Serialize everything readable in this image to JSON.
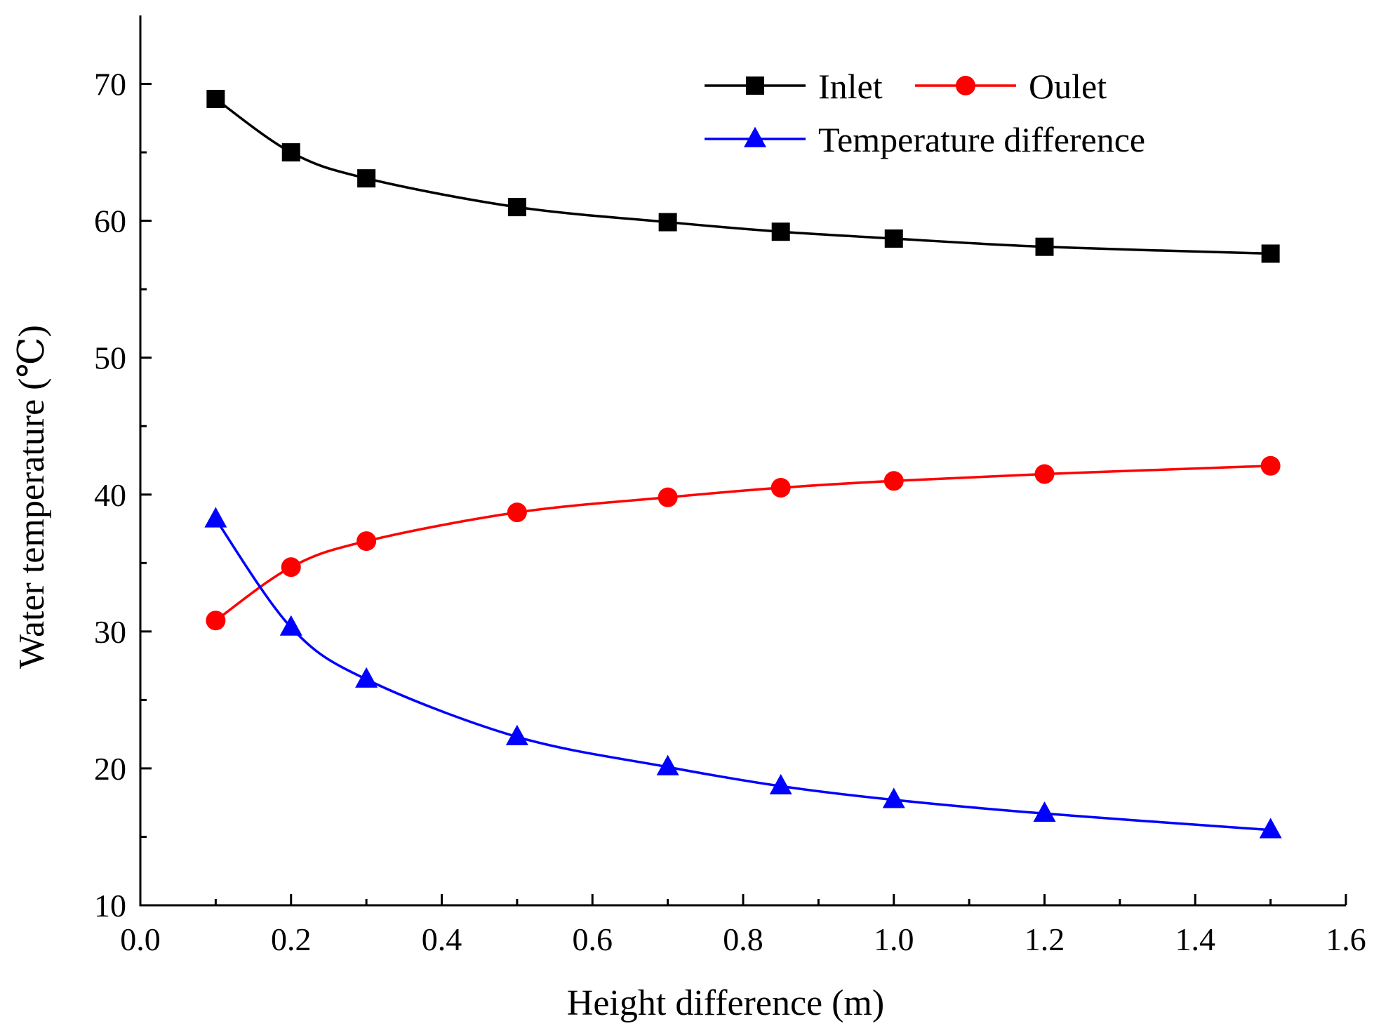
{
  "chart_data": {
    "type": "line",
    "xlabel": "Height difference (m)",
    "ylabel": "Water temperature (℃)",
    "xlim": [
      0.0,
      1.6
    ],
    "ylim": [
      10,
      75
    ],
    "x_ticks": [
      "0.0",
      "0.2",
      "0.4",
      "0.6",
      "0.8",
      "1.0",
      "1.2",
      "1.4",
      "1.6"
    ],
    "y_ticks": [
      "10",
      "20",
      "30",
      "40",
      "50",
      "60",
      "70"
    ],
    "grid": false,
    "legend_position": "top-right",
    "x": [
      0.1,
      0.2,
      0.3,
      0.5,
      0.7,
      0.85,
      1.0,
      1.2,
      1.5
    ],
    "series": [
      {
        "name": "Inlet",
        "color": "#000000",
        "marker": "square",
        "values": [
          68.9,
          65.0,
          63.1,
          61.0,
          59.9,
          59.2,
          58.7,
          58.1,
          57.6
        ]
      },
      {
        "name": "Oulet",
        "color": "#ff0000",
        "marker": "circle",
        "values": [
          30.8,
          34.7,
          36.6,
          38.7,
          39.8,
          40.5,
          41.0,
          41.5,
          42.1
        ]
      },
      {
        "name": "Temperature difference",
        "color": "#0000ff",
        "marker": "triangle",
        "values": [
          38.2,
          30.3,
          26.5,
          22.3,
          20.1,
          18.7,
          17.7,
          16.7,
          15.5
        ]
      }
    ]
  }
}
